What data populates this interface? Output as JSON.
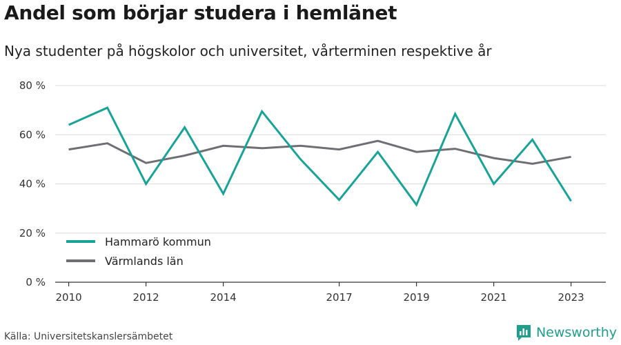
{
  "header": {
    "title": "Andel som börjar studera i hemlänet",
    "subtitle": "Nya studenter på högskolor och universitet, vårterminen respektive år"
  },
  "footer": {
    "source": "Källa: Universitetskanslersämbetet",
    "brand": "Newsworthy",
    "brand_icon": "bar-chart-icon",
    "brand_color": "#1f9e8b"
  },
  "chart_data": {
    "type": "line",
    "title": "Andel som börjar studera i hemlänet",
    "subtitle": "Nya studenter på högskolor och universitet, vårterminen respektive år",
    "xlabel": "",
    "ylabel": "",
    "x": [
      2010,
      2011,
      2012,
      2013,
      2014,
      2015,
      2016,
      2017,
      2018,
      2019,
      2020,
      2021,
      2022,
      2023
    ],
    "x_ticks": [
      "2010",
      "2012",
      "2014",
      "2017",
      "2019",
      "2021",
      "2023"
    ],
    "y_ticks": [
      "0 %",
      "20 %",
      "40 %",
      "60 %",
      "80 %"
    ],
    "ylim": [
      0,
      80
    ],
    "grid": true,
    "legend_position": "bottom-left",
    "series": [
      {
        "name": "Hammarö kommun",
        "color": "#17a398",
        "values": [
          64,
          71,
          40,
          63,
          36,
          69.5,
          50,
          33.5,
          53,
          31.5,
          68.5,
          40,
          58,
          33
        ]
      },
      {
        "name": "Värmlands län",
        "color": "#6e6e73",
        "values": [
          54,
          56.5,
          48.5,
          51.5,
          55.5,
          54.5,
          55.5,
          54,
          57.5,
          53,
          54.3,
          50.5,
          48.2,
          51
        ]
      }
    ]
  }
}
